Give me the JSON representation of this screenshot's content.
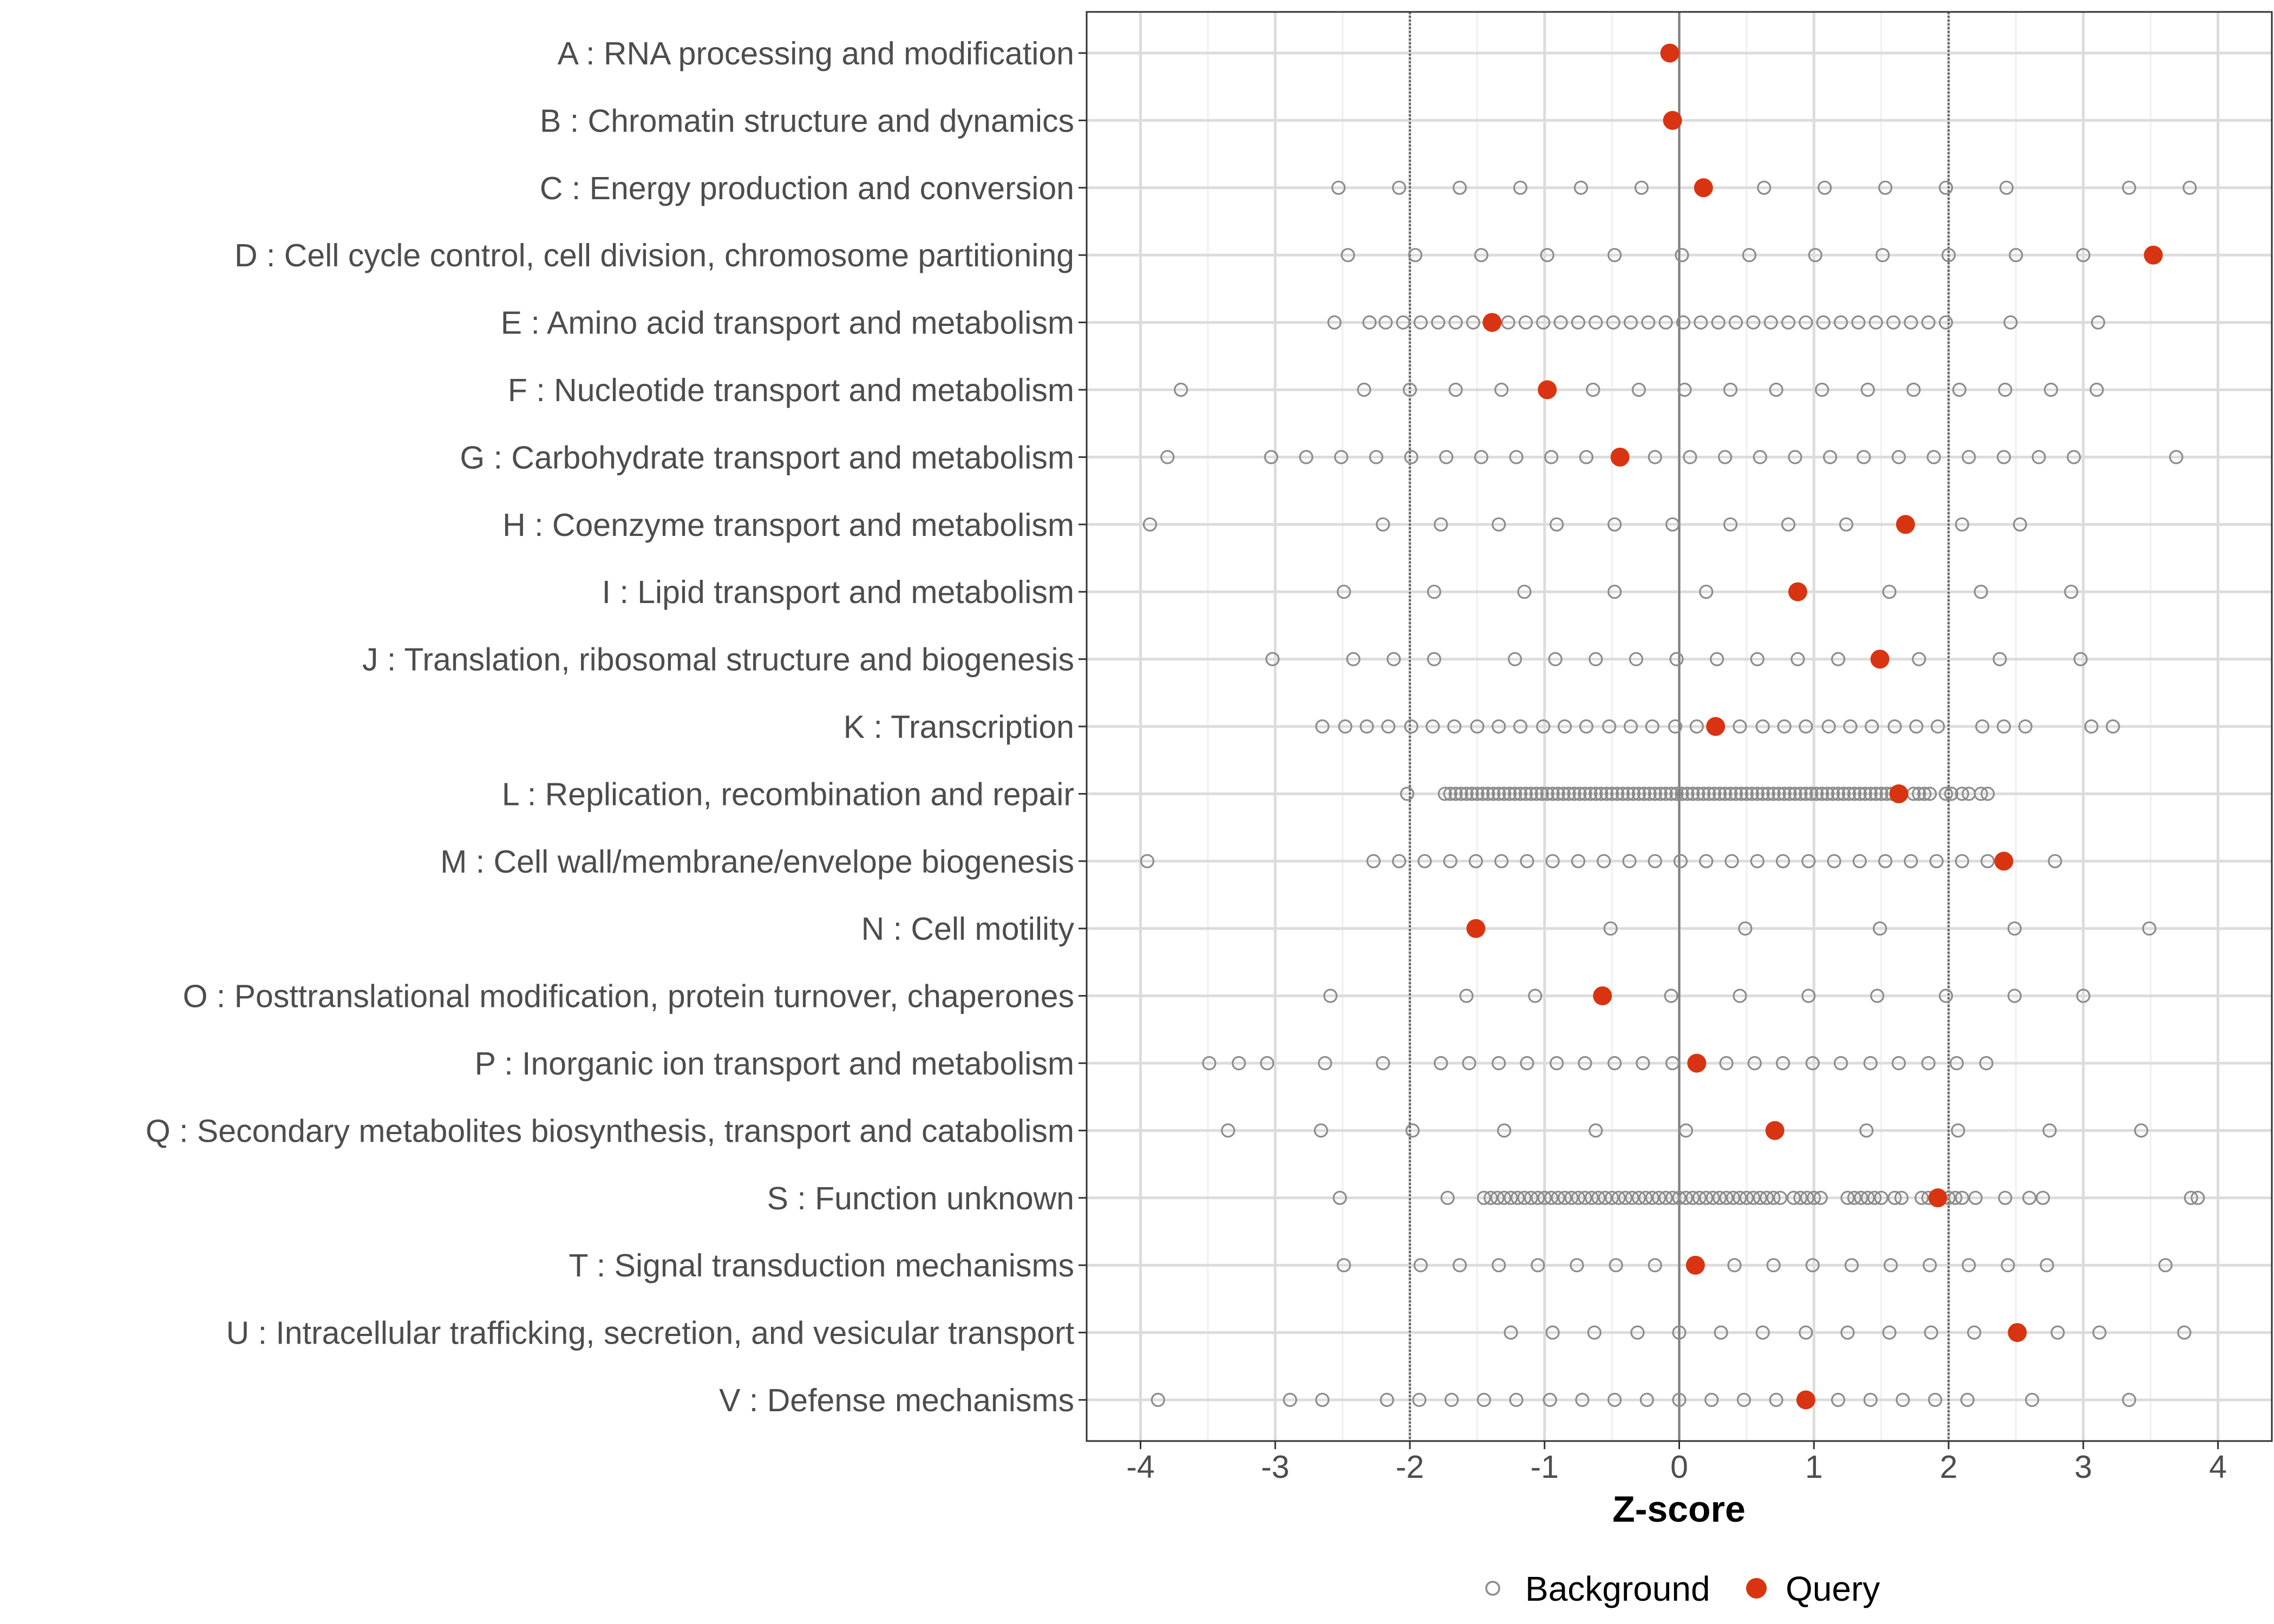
{
  "chart_data": {
    "type": "dot",
    "xlabel": "Z-score",
    "ylabel": "",
    "xlim": [
      -4.4,
      4.4
    ],
    "x_ticks": [
      -4,
      -3,
      -2,
      -1,
      0,
      1,
      2,
      3,
      4
    ],
    "x_tick_labels": [
      "-4",
      "-3",
      "-2",
      "-1",
      "0",
      "1",
      "2",
      "3",
      "4"
    ],
    "reference_lines": [
      -2,
      0,
      2
    ],
    "grid": true,
    "legend": {
      "position": "bottom",
      "entries": [
        {
          "key": "background",
          "label": "Background",
          "marker": "open-circle",
          "color": "#8c8c8c"
        },
        {
          "key": "query",
          "label": "Query",
          "marker": "filled-circle",
          "color": "#d93411"
        }
      ]
    },
    "categories": [
      {
        "label": "A : RNA processing and modification",
        "query": -0.07,
        "background": []
      },
      {
        "label": "B : Chromatin structure and dynamics",
        "query": -0.05,
        "background": []
      },
      {
        "label": "C : Energy production and conversion",
        "query": 0.18,
        "background": [
          -2.53,
          -2.08,
          -1.63,
          -1.18,
          -0.73,
          -0.28,
          0.63,
          1.08,
          1.53,
          1.98,
          2.43,
          3.34,
          3.79
        ]
      },
      {
        "label": "D : Cell cycle control, cell division, chromosome partitioning",
        "query": 3.52,
        "background": [
          -2.46,
          -1.96,
          -1.47,
          -0.98,
          -0.48,
          0.02,
          0.52,
          1.01,
          1.51,
          2.0,
          2.5,
          3.0
        ]
      },
      {
        "label": "E : Amino acid transport and metabolism",
        "query": -1.39,
        "background": [
          -2.56,
          -2.3,
          -2.18,
          -2.05,
          -1.92,
          -1.79,
          -1.66,
          -1.53,
          -1.27,
          -1.14,
          -1.01,
          -0.88,
          -0.75,
          -0.62,
          -0.49,
          -0.36,
          -0.23,
          -0.1,
          0.03,
          0.16,
          0.29,
          0.42,
          0.55,
          0.68,
          0.81,
          0.94,
          1.07,
          1.2,
          1.33,
          1.46,
          1.59,
          1.72,
          1.85,
          1.98,
          2.46,
          3.11
        ]
      },
      {
        "label": "F : Nucleotide transport and metabolism",
        "query": -0.98,
        "background": [
          -3.7,
          -2.34,
          -2.0,
          -1.66,
          -1.32,
          -0.64,
          -0.3,
          0.04,
          0.38,
          0.72,
          1.06,
          1.4,
          1.74,
          2.08,
          2.42,
          2.76,
          3.1
        ]
      },
      {
        "label": "G : Carbohydrate transport and metabolism",
        "query": -0.44,
        "background": [
          -3.8,
          -3.03,
          -2.77,
          -2.51,
          -2.25,
          -1.99,
          -1.73,
          -1.47,
          -1.21,
          -0.95,
          -0.69,
          -0.18,
          0.08,
          0.34,
          0.6,
          0.86,
          1.12,
          1.37,
          1.63,
          1.89,
          2.15,
          2.41,
          2.67,
          2.93,
          3.69
        ]
      },
      {
        "label": "H : Coenzyme transport and metabolism",
        "query": 1.68,
        "background": [
          -3.93,
          -2.2,
          -1.77,
          -1.34,
          -0.91,
          -0.48,
          -0.05,
          0.38,
          0.81,
          1.24,
          2.1,
          2.53
        ]
      },
      {
        "label": "I : Lipid transport and metabolism",
        "query": 0.88,
        "background": [
          -2.49,
          -1.82,
          -1.15,
          -0.48,
          0.2,
          1.56,
          2.24,
          2.91
        ]
      },
      {
        "label": "J : Translation, ribosomal structure and biogenesis",
        "query": 1.49,
        "background": [
          -3.02,
          -2.42,
          -2.12,
          -1.82,
          -1.22,
          -0.92,
          -0.62,
          -0.32,
          -0.02,
          0.28,
          0.58,
          0.88,
          1.18,
          1.78,
          2.38,
          2.98
        ]
      },
      {
        "label": "K : Transcription",
        "query": 0.27,
        "background": [
          -2.65,
          -2.48,
          -2.32,
          -2.16,
          -1.99,
          -1.83,
          -1.67,
          -1.5,
          -1.34,
          -1.18,
          -1.01,
          -0.85,
          -0.69,
          -0.52,
          -0.36,
          -0.2,
          -0.03,
          0.13,
          0.45,
          0.62,
          0.78,
          0.94,
          1.11,
          1.27,
          1.43,
          1.6,
          1.76,
          1.92,
          2.25,
          2.41,
          2.57,
          3.06,
          3.22
        ]
      },
      {
        "label": "L : Replication, recombination and repair",
        "query": 1.63,
        "background": [
          -2.02,
          -1.74,
          -1.7,
          -1.66,
          -1.62,
          -1.58,
          -1.54,
          -1.5,
          -1.46,
          -1.42,
          -1.38,
          -1.34,
          -1.3,
          -1.26,
          -1.22,
          -1.18,
          -1.14,
          -1.1,
          -1.06,
          -1.02,
          -0.98,
          -0.94,
          -0.9,
          -0.86,
          -0.82,
          -0.78,
          -0.74,
          -0.7,
          -0.66,
          -0.62,
          -0.58,
          -0.54,
          -0.5,
          -0.46,
          -0.42,
          -0.38,
          -0.34,
          -0.3,
          -0.26,
          -0.22,
          -0.18,
          -0.14,
          -0.1,
          -0.06,
          -0.02,
          0.02,
          0.06,
          0.1,
          0.14,
          0.18,
          0.22,
          0.26,
          0.3,
          0.34,
          0.38,
          0.42,
          0.46,
          0.5,
          0.54,
          0.58,
          0.62,
          0.66,
          0.7,
          0.74,
          0.78,
          0.82,
          0.86,
          0.9,
          0.94,
          0.98,
          1.02,
          1.06,
          1.1,
          1.14,
          1.18,
          1.22,
          1.26,
          1.3,
          1.34,
          1.38,
          1.42,
          1.46,
          1.5,
          1.54,
          1.58,
          1.74,
          1.78,
          1.82,
          1.86,
          1.98,
          2.02,
          2.1,
          2.15,
          2.24,
          2.29
        ]
      },
      {
        "label": "M : Cell wall/membrane/envelope biogenesis",
        "query": 2.41,
        "background": [
          -3.95,
          -2.27,
          -2.08,
          -1.89,
          -1.7,
          -1.51,
          -1.32,
          -1.13,
          -0.94,
          -0.75,
          -0.56,
          -0.37,
          -0.18,
          0.01,
          0.2,
          0.39,
          0.58,
          0.77,
          0.96,
          1.15,
          1.34,
          1.53,
          1.72,
          1.91,
          2.1,
          2.29,
          2.79
        ]
      },
      {
        "label": "N : Cell motility",
        "query": -1.51,
        "background": [
          -0.51,
          0.49,
          1.49,
          2.49,
          3.49
        ]
      },
      {
        "label": "O : Posttranslational modification, protein turnover, chaperones",
        "query": -0.57,
        "background": [
          -2.59,
          -1.58,
          -1.07,
          -0.06,
          0.45,
          0.96,
          1.47,
          1.98,
          2.49,
          3.0
        ]
      },
      {
        "label": "P : Inorganic ion transport and metabolism",
        "query": 0.13,
        "background": [
          -3.49,
          -3.27,
          -3.06,
          -2.63,
          -2.2,
          -1.77,
          -1.56,
          -1.34,
          -1.13,
          -0.91,
          -0.7,
          -0.48,
          -0.27,
          -0.05,
          0.35,
          0.56,
          0.77,
          0.99,
          1.2,
          1.42,
          1.63,
          1.85,
          2.06,
          2.28
        ]
      },
      {
        "label": "Q : Secondary metabolites biosynthesis, transport and catabolism",
        "query": 0.71,
        "background": [
          -3.35,
          -2.66,
          -1.98,
          -1.3,
          -0.62,
          0.05,
          1.39,
          2.07,
          2.75,
          3.43
        ]
      },
      {
        "label": "S : Function unknown",
        "query": 1.92,
        "background": [
          -2.52,
          -1.72,
          -1.45,
          -1.4,
          -1.35,
          -1.3,
          -1.25,
          -1.2,
          -1.15,
          -1.1,
          -1.05,
          -1.0,
          -0.95,
          -0.9,
          -0.85,
          -0.8,
          -0.75,
          -0.7,
          -0.65,
          -0.6,
          -0.55,
          -0.5,
          -0.45,
          -0.4,
          -0.35,
          -0.3,
          -0.25,
          -0.2,
          -0.15,
          -0.1,
          -0.05,
          0.0,
          0.05,
          0.1,
          0.15,
          0.2,
          0.25,
          0.3,
          0.35,
          0.4,
          0.45,
          0.5,
          0.55,
          0.6,
          0.65,
          0.7,
          0.75,
          0.85,
          0.9,
          0.95,
          1.0,
          1.05,
          1.25,
          1.3,
          1.35,
          1.4,
          1.45,
          1.5,
          1.6,
          1.65,
          1.8,
          1.85,
          2.0,
          2.05,
          2.1,
          2.2,
          2.42,
          2.6,
          2.7,
          3.8,
          3.85
        ]
      },
      {
        "label": "T : Signal transduction mechanisms",
        "query": 0.12,
        "background": [
          -2.49,
          -1.92,
          -1.63,
          -1.34,
          -1.05,
          -0.76,
          -0.47,
          -0.18,
          0.41,
          0.7,
          0.99,
          1.28,
          1.57,
          1.86,
          2.15,
          2.44,
          2.73,
          3.61
        ]
      },
      {
        "label": "U : Intracellular trafficking, secretion, and vesicular transport",
        "query": 2.51,
        "background": [
          -1.25,
          -0.94,
          -0.63,
          -0.31,
          0.0,
          0.31,
          0.62,
          0.94,
          1.25,
          1.56,
          1.87,
          2.19,
          2.81,
          3.12,
          3.75
        ]
      },
      {
        "label": "V : Defense mechanisms",
        "query": 0.94,
        "background": [
          -3.87,
          -2.89,
          -2.65,
          -2.17,
          -1.93,
          -1.69,
          -1.45,
          -1.21,
          -0.96,
          -0.72,
          -0.48,
          -0.24,
          0.0,
          0.24,
          0.48,
          0.72,
          1.18,
          1.42,
          1.66,
          1.9,
          2.14,
          2.62,
          3.34
        ]
      }
    ]
  }
}
